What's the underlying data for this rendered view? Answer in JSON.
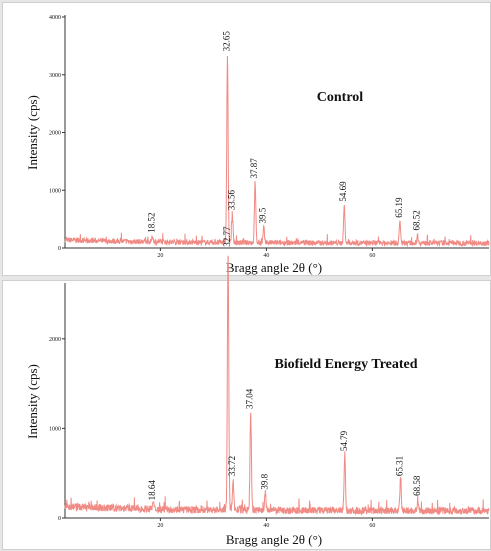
{
  "chart_data": [
    {
      "type": "line",
      "title": "Control",
      "xlabel": "Bragg angle 2θ (°)",
      "ylabel": "Intensity (cps)",
      "xlim": [
        2,
        82
      ],
      "ylim": [
        0,
        4000
      ],
      "x_ticks": [
        20,
        40,
        60
      ],
      "y_ticks": [
        0,
        1000,
        2000,
        3000,
        4000
      ],
      "grid": false,
      "line_color": "#f08a84",
      "background_level": 100,
      "peaks": [
        {
          "label": "18.52",
          "x": 18.52,
          "y": 160
        },
        {
          "label": "32.65",
          "x": 32.65,
          "y": 3300
        },
        {
          "label": "33.56",
          "x": 33.56,
          "y": 550
        },
        {
          "label": "37.87",
          "x": 37.87,
          "y": 1100
        },
        {
          "label": "39.5",
          "x": 39.5,
          "y": 320
        },
        {
          "label": "54.69",
          "x": 54.69,
          "y": 700
        },
        {
          "label": "65.19",
          "x": 65.19,
          "y": 420
        },
        {
          "label": "68.52",
          "x": 68.52,
          "y": 200
        }
      ]
    },
    {
      "type": "line",
      "title": "Biofield Energy Treated",
      "xlabel": "Bragg angle 2θ (°)",
      "ylabel": "Intensity (cps)",
      "xlim": [
        2,
        82
      ],
      "ylim": [
        0,
        2600
      ],
      "x_ticks": [
        20,
        40,
        60
      ],
      "y_ticks": [
        0,
        1000,
        2000
      ],
      "grid": false,
      "line_color": "#f08a84",
      "background_level": 90,
      "peaks": [
        {
          "label": "18.64",
          "x": 18.64,
          "y": 130
        },
        {
          "label": "32.77",
          "x": 32.77,
          "y": 2960
        },
        {
          "label": "33.72",
          "x": 33.72,
          "y": 400
        },
        {
          "label": "37.04",
          "x": 37.04,
          "y": 1150
        },
        {
          "label": "39.8",
          "x": 39.8,
          "y": 250
        },
        {
          "label": "54.79",
          "x": 54.79,
          "y": 680
        },
        {
          "label": "65.31",
          "x": 65.31,
          "y": 400
        },
        {
          "label": "68.58",
          "x": 68.58,
          "y": 180
        }
      ]
    }
  ]
}
